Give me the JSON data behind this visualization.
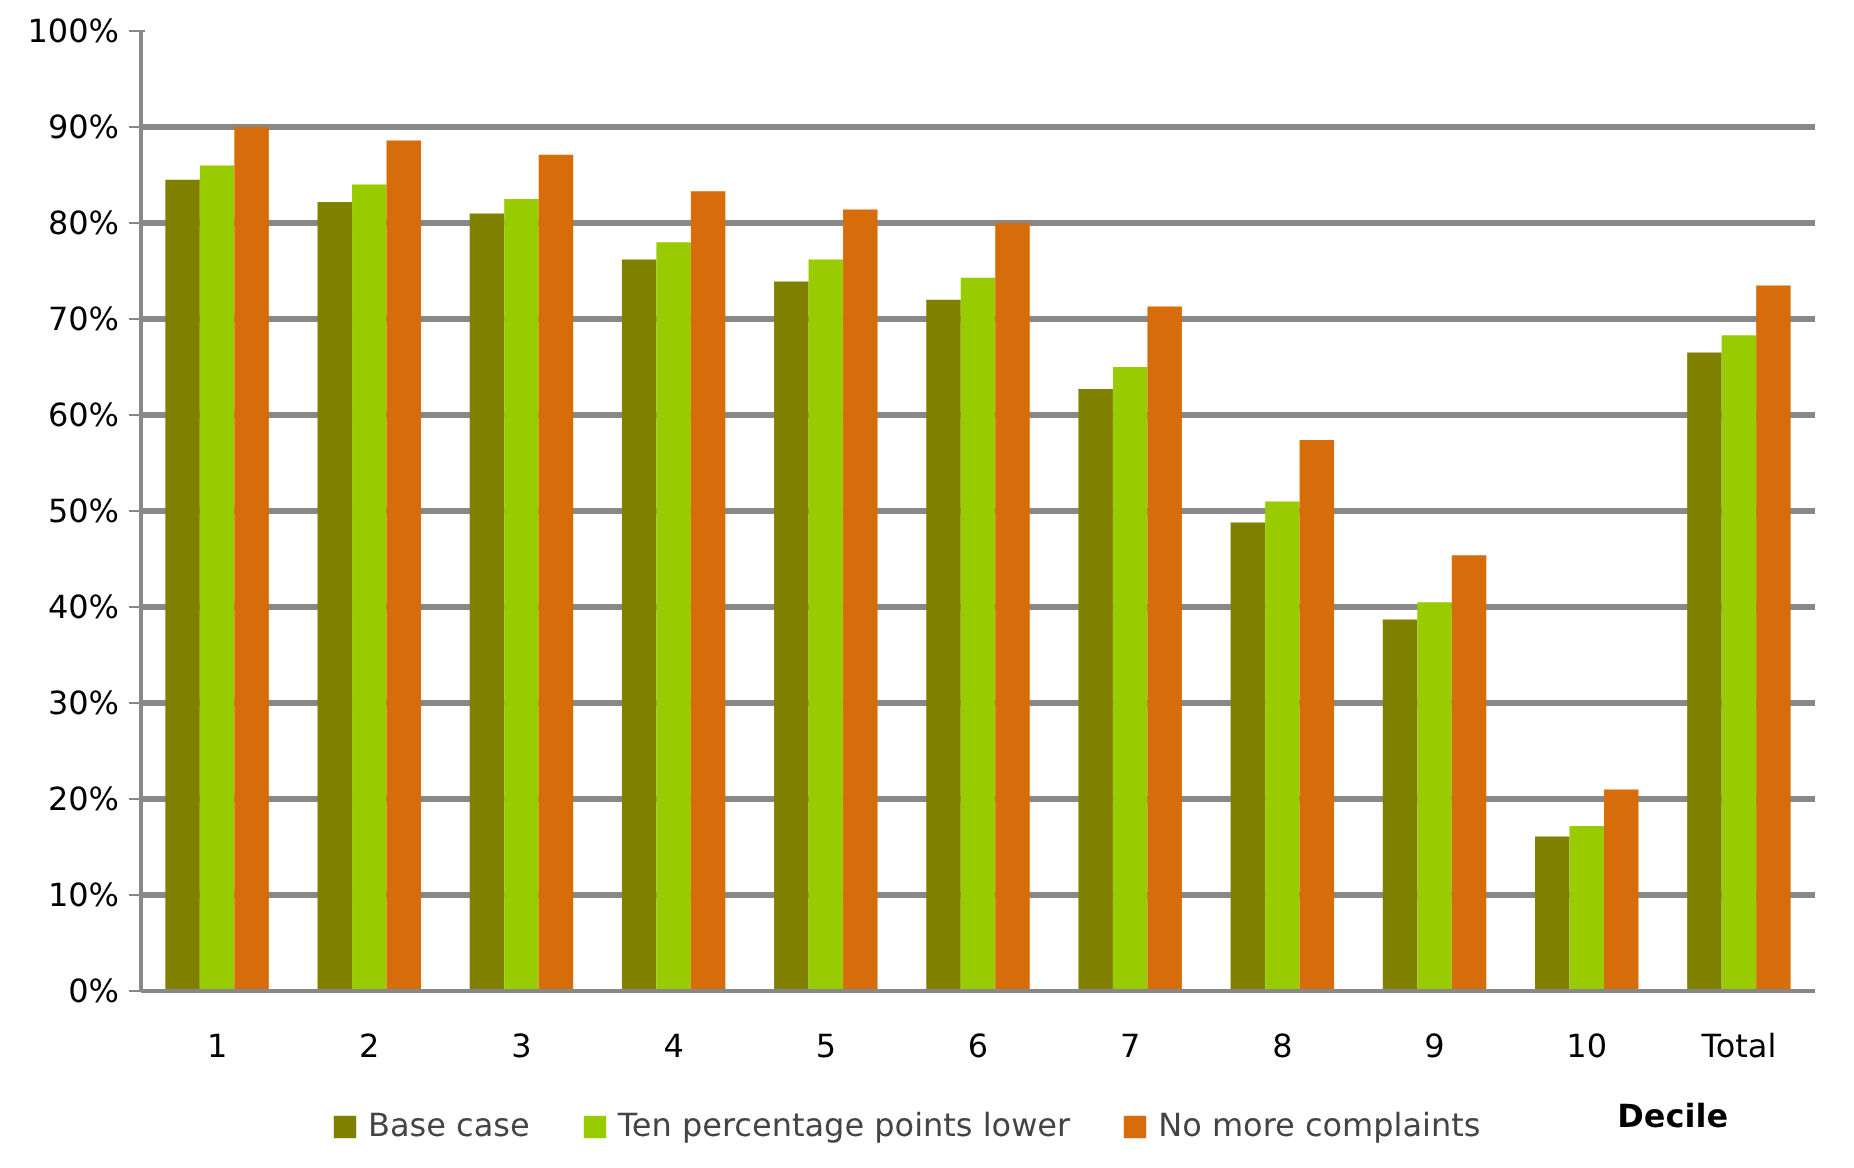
{
  "chart_data": {
    "type": "bar",
    "xlabel": "Decile",
    "categories": [
      "1",
      "2",
      "3",
      "4",
      "5",
      "6",
      "7",
      "8",
      "9",
      "10",
      "Total"
    ],
    "series": [
      {
        "name": "Base case",
        "color": "#808000",
        "values": [
          84.5,
          82.2,
          81.0,
          76.2,
          73.9,
          72.0,
          62.7,
          48.8,
          38.7,
          16.1,
          66.5
        ]
      },
      {
        "name": "Ten percentage points lower",
        "color": "#99cc00",
        "values": [
          86.0,
          84.0,
          82.5,
          78.0,
          76.2,
          74.3,
          65.0,
          51.0,
          40.5,
          17.2,
          68.3
        ]
      },
      {
        "name": "No more complaints",
        "color": "#d66c0a",
        "values": [
          90.0,
          88.6,
          87.1,
          83.3,
          81.4,
          80.0,
          71.3,
          57.4,
          45.4,
          21.0,
          73.5
        ]
      }
    ],
    "ylim": [
      0,
      100
    ],
    "yticks": [
      {
        "value": 0,
        "label": "0%"
      },
      {
        "value": 10,
        "label": "10%"
      },
      {
        "value": 20,
        "label": "20%"
      },
      {
        "value": 30,
        "label": "30%"
      },
      {
        "value": 40,
        "label": "40%"
      },
      {
        "value": 50,
        "label": "50%"
      },
      {
        "value": 60,
        "label": "60%"
      },
      {
        "value": 70,
        "label": "70%"
      },
      {
        "value": 80,
        "label": "80%"
      },
      {
        "value": 90,
        "label": "90%"
      },
      {
        "value": 100,
        "label": "100%"
      }
    ],
    "grid": "y",
    "legend": "bottom"
  }
}
